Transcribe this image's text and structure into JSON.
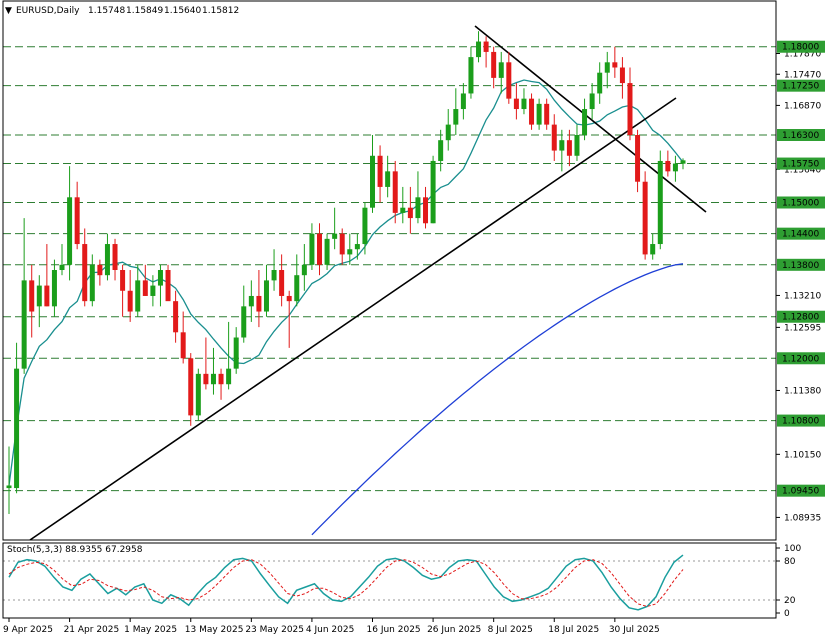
{
  "header": {
    "symbol": "EURUSD,Daily",
    "open": "1.15748",
    "high": "1.15849",
    "low": "1.15640",
    "close": "1.15812"
  },
  "price_axis": {
    "ticks": [
      "1.17870",
      "1.17470",
      "1.16870",
      "1.15640",
      "1.13210",
      "1.12595",
      "1.11380",
      "1.10150",
      "1.08935"
    ]
  },
  "levels": [
    "1.18000",
    "1.17250",
    "1.16300",
    "1.15750",
    "1.15000",
    "1.14400",
    "1.13800",
    "1.12800",
    "1.12000",
    "1.10800",
    "1.09450"
  ],
  "date_axis": [
    "9 Apr 2025",
    "21 Apr 2025",
    "1 May 2025",
    "13 May 2025",
    "23 May 2025",
    "4 Jun 2025",
    "16 Jun 2025",
    "26 Jun 2025",
    "8 Jul 2025",
    "18 Jul 2025",
    "30 Jul 2025"
  ],
  "stoch": {
    "label": "Stoch(5,3,3) 88.9355 67.2958",
    "ticks": [
      "100",
      "80",
      "20",
      "0"
    ]
  },
  "chart_data": [
    {
      "type": "candlestick",
      "ylim": [
        1.085,
        1.189
      ],
      "levels": [
        1.18,
        1.1725,
        1.163,
        1.1575,
        1.15,
        1.144,
        1.138,
        1.128,
        1.12,
        1.108,
        1.0945
      ],
      "candles": [
        {
          "o": 1.095,
          "h": 1.103,
          "l": 1.09,
          "c": 1.0955
        },
        {
          "o": 1.095,
          "h": 1.123,
          "l": 1.094,
          "c": 1.118
        },
        {
          "o": 1.118,
          "h": 1.147,
          "l": 1.117,
          "c": 1.135
        },
        {
          "o": 1.135,
          "h": 1.138,
          "l": 1.124,
          "c": 1.129
        },
        {
          "o": 1.13,
          "h": 1.136,
          "l": 1.126,
          "c": 1.134
        },
        {
          "o": 1.134,
          "h": 1.142,
          "l": 1.13,
          "c": 1.13
        },
        {
          "o": 1.13,
          "h": 1.139,
          "l": 1.128,
          "c": 1.137
        },
        {
          "o": 1.137,
          "h": 1.142,
          "l": 1.136,
          "c": 1.138
        },
        {
          "o": 1.138,
          "h": 1.157,
          "l": 1.135,
          "c": 1.151
        },
        {
          "o": 1.151,
          "h": 1.154,
          "l": 1.141,
          "c": 1.142
        },
        {
          "o": 1.142,
          "h": 1.145,
          "l": 1.13,
          "c": 1.131
        },
        {
          "o": 1.131,
          "h": 1.14,
          "l": 1.13,
          "c": 1.138
        },
        {
          "o": 1.138,
          "h": 1.139,
          "l": 1.134,
          "c": 1.136
        },
        {
          "o": 1.136,
          "h": 1.144,
          "l": 1.135,
          "c": 1.142
        },
        {
          "o": 1.142,
          "h": 1.143,
          "l": 1.135,
          "c": 1.137
        },
        {
          "o": 1.137,
          "h": 1.138,
          "l": 1.128,
          "c": 1.133
        },
        {
          "o": 1.133,
          "h": 1.137,
          "l": 1.127,
          "c": 1.129
        },
        {
          "o": 1.129,
          "h": 1.138,
          "l": 1.128,
          "c": 1.135
        },
        {
          "o": 1.135,
          "h": 1.138,
          "l": 1.132,
          "c": 1.132
        },
        {
          "o": 1.132,
          "h": 1.136,
          "l": 1.13,
          "c": 1.134
        },
        {
          "o": 1.134,
          "h": 1.138,
          "l": 1.13,
          "c": 1.137
        },
        {
          "o": 1.137,
          "h": 1.138,
          "l": 1.132,
          "c": 1.131
        },
        {
          "o": 1.131,
          "h": 1.133,
          "l": 1.123,
          "c": 1.125
        },
        {
          "o": 1.125,
          "h": 1.129,
          "l": 1.119,
          "c": 1.12
        },
        {
          "o": 1.12,
          "h": 1.121,
          "l": 1.107,
          "c": 1.109
        },
        {
          "o": 1.109,
          "h": 1.118,
          "l": 1.108,
          "c": 1.117
        },
        {
          "o": 1.117,
          "h": 1.124,
          "l": 1.114,
          "c": 1.115
        },
        {
          "o": 1.115,
          "h": 1.122,
          "l": 1.113,
          "c": 1.117
        },
        {
          "o": 1.117,
          "h": 1.118,
          "l": 1.112,
          "c": 1.115
        },
        {
          "o": 1.115,
          "h": 1.127,
          "l": 1.114,
          "c": 1.118
        },
        {
          "o": 1.118,
          "h": 1.126,
          "l": 1.117,
          "c": 1.124
        },
        {
          "o": 1.124,
          "h": 1.134,
          "l": 1.123,
          "c": 1.13
        },
        {
          "o": 1.13,
          "h": 1.135,
          "l": 1.127,
          "c": 1.132
        },
        {
          "o": 1.132,
          "h": 1.137,
          "l": 1.126,
          "c": 1.129
        },
        {
          "o": 1.129,
          "h": 1.138,
          "l": 1.128,
          "c": 1.135
        },
        {
          "o": 1.135,
          "h": 1.141,
          "l": 1.133,
          "c": 1.137
        },
        {
          "o": 1.137,
          "h": 1.14,
          "l": 1.13,
          "c": 1.132
        },
        {
          "o": 1.132,
          "h": 1.133,
          "l": 1.122,
          "c": 1.131
        },
        {
          "o": 1.131,
          "h": 1.14,
          "l": 1.13,
          "c": 1.136
        },
        {
          "o": 1.136,
          "h": 1.142,
          "l": 1.133,
          "c": 1.138
        },
        {
          "o": 1.138,
          "h": 1.146,
          "l": 1.137,
          "c": 1.144
        },
        {
          "o": 1.144,
          "h": 1.146,
          "l": 1.136,
          "c": 1.138
        },
        {
          "o": 1.138,
          "h": 1.144,
          "l": 1.137,
          "c": 1.143
        },
        {
          "o": 1.143,
          "h": 1.149,
          "l": 1.141,
          "c": 1.144
        },
        {
          "o": 1.144,
          "h": 1.145,
          "l": 1.138,
          "c": 1.14
        },
        {
          "o": 1.14,
          "h": 1.144,
          "l": 1.138,
          "c": 1.141
        },
        {
          "o": 1.141,
          "h": 1.144,
          "l": 1.139,
          "c": 1.142
        },
        {
          "o": 1.142,
          "h": 1.15,
          "l": 1.14,
          "c": 1.149
        },
        {
          "o": 1.149,
          "h": 1.163,
          "l": 1.148,
          "c": 1.159
        },
        {
          "o": 1.159,
          "h": 1.161,
          "l": 1.15,
          "c": 1.153
        },
        {
          "o": 1.153,
          "h": 1.159,
          "l": 1.151,
          "c": 1.156
        },
        {
          "o": 1.156,
          "h": 1.158,
          "l": 1.146,
          "c": 1.148
        },
        {
          "o": 1.148,
          "h": 1.153,
          "l": 1.146,
          "c": 1.149
        },
        {
          "o": 1.149,
          "h": 1.153,
          "l": 1.144,
          "c": 1.147
        },
        {
          "o": 1.147,
          "h": 1.156,
          "l": 1.146,
          "c": 1.151
        },
        {
          "o": 1.151,
          "h": 1.153,
          "l": 1.145,
          "c": 1.146
        },
        {
          "o": 1.146,
          "h": 1.159,
          "l": 1.146,
          "c": 1.158
        },
        {
          "o": 1.158,
          "h": 1.164,
          "l": 1.156,
          "c": 1.162
        },
        {
          "o": 1.162,
          "h": 1.168,
          "l": 1.16,
          "c": 1.165
        },
        {
          "o": 1.165,
          "h": 1.172,
          "l": 1.163,
          "c": 1.168
        },
        {
          "o": 1.168,
          "h": 1.173,
          "l": 1.166,
          "c": 1.171
        },
        {
          "o": 1.171,
          "h": 1.18,
          "l": 1.17,
          "c": 1.178
        },
        {
          "o": 1.178,
          "h": 1.183,
          "l": 1.177,
          "c": 1.181
        },
        {
          "o": 1.181,
          "h": 1.182,
          "l": 1.176,
          "c": 1.179
        },
        {
          "o": 1.179,
          "h": 1.18,
          "l": 1.172,
          "c": 1.174
        },
        {
          "o": 1.174,
          "h": 1.179,
          "l": 1.171,
          "c": 1.177
        },
        {
          "o": 1.177,
          "h": 1.179,
          "l": 1.169,
          "c": 1.17
        },
        {
          "o": 1.17,
          "h": 1.173,
          "l": 1.166,
          "c": 1.168
        },
        {
          "o": 1.168,
          "h": 1.172,
          "l": 1.167,
          "c": 1.17
        },
        {
          "o": 1.17,
          "h": 1.171,
          "l": 1.164,
          "c": 1.165
        },
        {
          "o": 1.165,
          "h": 1.17,
          "l": 1.164,
          "c": 1.169
        },
        {
          "o": 1.169,
          "h": 1.17,
          "l": 1.164,
          "c": 1.165
        },
        {
          "o": 1.165,
          "h": 1.167,
          "l": 1.158,
          "c": 1.16
        },
        {
          "o": 1.16,
          "h": 1.164,
          "l": 1.156,
          "c": 1.162
        },
        {
          "o": 1.162,
          "h": 1.164,
          "l": 1.157,
          "c": 1.159
        },
        {
          "o": 1.159,
          "h": 1.165,
          "l": 1.158,
          "c": 1.163
        },
        {
          "o": 1.163,
          "h": 1.17,
          "l": 1.162,
          "c": 1.168
        },
        {
          "o": 1.168,
          "h": 1.173,
          "l": 1.166,
          "c": 1.171
        },
        {
          "o": 1.171,
          "h": 1.177,
          "l": 1.169,
          "c": 1.175
        },
        {
          "o": 1.175,
          "h": 1.179,
          "l": 1.172,
          "c": 1.177
        },
        {
          "o": 1.177,
          "h": 1.18,
          "l": 1.174,
          "c": 1.176
        },
        {
          "o": 1.176,
          "h": 1.178,
          "l": 1.17,
          "c": 1.173
        },
        {
          "o": 1.173,
          "h": 1.176,
          "l": 1.162,
          "c": 1.163
        },
        {
          "o": 1.163,
          "h": 1.164,
          "l": 1.152,
          "c": 1.154
        },
        {
          "o": 1.154,
          "h": 1.156,
          "l": 1.139,
          "c": 1.14
        },
        {
          "o": 1.14,
          "h": 1.144,
          "l": 1.139,
          "c": 1.142
        },
        {
          "o": 1.142,
          "h": 1.16,
          "l": 1.141,
          "c": 1.158
        },
        {
          "o": 1.158,
          "h": 1.16,
          "l": 1.155,
          "c": 1.156
        },
        {
          "o": 1.156,
          "h": 1.159,
          "l": 1.154,
          "c": 1.1575
        },
        {
          "o": 1.15748,
          "h": 1.15849,
          "l": 1.1564,
          "c": 1.15812
        }
      ]
    },
    {
      "type": "line",
      "title": "Stoch(5,3,3)",
      "ylim": [
        0,
        100
      ],
      "series": [
        {
          "values": [
            55,
            78,
            82,
            80,
            72,
            55,
            40,
            35,
            52,
            60,
            45,
            30,
            38,
            28,
            40,
            45,
            20,
            15,
            28,
            22,
            12,
            30,
            45,
            55,
            70,
            82,
            84,
            80,
            60,
            42,
            25,
            15,
            35,
            40,
            45,
            30,
            20,
            18,
            25,
            40,
            55,
            72,
            82,
            84,
            80,
            70,
            58,
            52,
            55,
            70,
            80,
            82,
            80,
            60,
            40,
            25,
            18,
            20,
            25,
            30,
            38,
            55,
            72,
            82,
            84,
            80,
            62,
            40,
            22,
            8,
            5,
            10,
            25,
            55,
            78,
            89
          ]
        },
        {
          "values": [
            60,
            70,
            75,
            78,
            76,
            66,
            52,
            42,
            44,
            52,
            50,
            42,
            38,
            34,
            36,
            40,
            35,
            25,
            22,
            24,
            20,
            22,
            30,
            42,
            56,
            70,
            80,
            82,
            75,
            62,
            46,
            30,
            26,
            30,
            38,
            38,
            32,
            24,
            22,
            28,
            40,
            55,
            70,
            80,
            82,
            78,
            70,
            60,
            56,
            60,
            68,
            76,
            80,
            75,
            62,
            45,
            30,
            22,
            22,
            25,
            30,
            40,
            55,
            70,
            80,
            82,
            76,
            62,
            44,
            26,
            14,
            10,
            14,
            30,
            50,
            67
          ]
        }
      ]
    }
  ]
}
